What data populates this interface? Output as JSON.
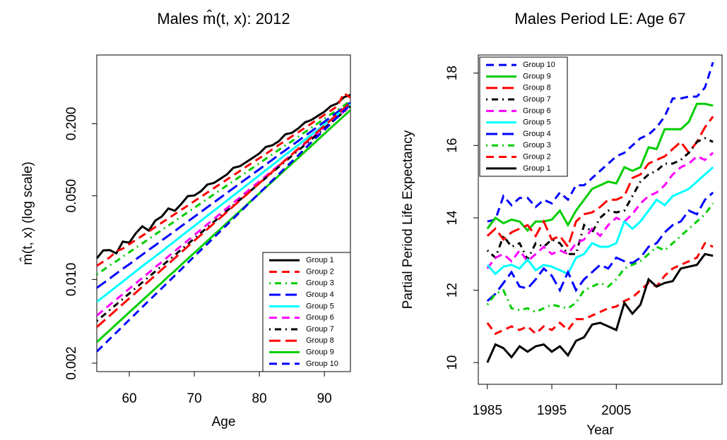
{
  "chart_data": [
    {
      "type": "line",
      "title": "Males m̂(t, x): 2012",
      "xlabel": "Age",
      "ylabel": "m̂(t, x) (log scale)",
      "ylog": true,
      "legend": "bottomright",
      "xlim": [
        55,
        94
      ],
      "xticks": [
        60,
        70,
        80,
        90
      ],
      "ylim": [
        0.0017,
        0.75
      ],
      "yticks": [
        0.002,
        {
          "value": 0.01,
          "label": "0.010"
        },
        {
          "value": 0.05,
          "label": "0.050"
        },
        {
          "value": 0.2,
          "label": "0.200"
        }
      ],
      "x": [
        55,
        56,
        57,
        58,
        59,
        60,
        61,
        62,
        63,
        64,
        65,
        66,
        67,
        68,
        69,
        70,
        71,
        72,
        73,
        74,
        75,
        76,
        77,
        78,
        79,
        80,
        81,
        82,
        83,
        84,
        85,
        86,
        87,
        88,
        89,
        90,
        91,
        92,
        93,
        94
      ],
      "series": [
        {
          "name": "Group 1",
          "color": "#000000",
          "linestyle": "solid",
          "values": [
            0.015,
            0.0175,
            0.0176,
            0.0165,
            0.0207,
            0.0203,
            0.0243,
            0.0278,
            0.0256,
            0.031,
            0.0336,
            0.0392,
            0.0375,
            0.0428,
            0.0497,
            0.0503,
            0.0545,
            0.0621,
            0.064,
            0.0694,
            0.0753,
            0.0856,
            0.0884,
            0.0959,
            0.104,
            0.113,
            0.128,
            0.132,
            0.143,
            0.163,
            0.168,
            0.183,
            0.205,
            0.215,
            0.233,
            0.252,
            0.281,
            0.296,
            0.333,
            0.348
          ]
        },
        {
          "name": "Group 2",
          "color": "#ff0000",
          "linestyle": "dashed",
          "values": [
            0.013,
            0.0141,
            0.0153,
            0.0172,
            0.0181,
            0.0197,
            0.0214,
            0.0232,
            0.0252,
            0.0274,
            0.0298,
            0.0324,
            0.0352,
            0.0382,
            0.0415,
            0.0451,
            0.049,
            0.0533,
            0.0579,
            0.0629,
            0.0683,
            0.0742,
            0.0806,
            0.0876,
            0.0952,
            0.103,
            0.112,
            0.122,
            0.133,
            0.144,
            0.157,
            0.17,
            0.185,
            0.201,
            0.218,
            0.237,
            0.258,
            0.28,
            0.36,
            0.33
          ]
        },
        {
          "name": "Group 3",
          "color": "#00cd00",
          "linestyle": "dotdash",
          "values": [
            0.011,
            0.012,
            0.0131,
            0.0142,
            0.0155,
            0.0169,
            0.0184,
            0.02,
            0.0218,
            0.0238,
            0.0259,
            0.0282,
            0.0307,
            0.0335,
            0.0365,
            0.0397,
            0.0433,
            0.0471,
            0.0514,
            0.0559,
            0.0609,
            0.0664,
            0.0723,
            0.0788,
            0.0858,
            0.0935,
            0.102,
            0.111,
            0.121,
            0.132,
            0.143,
            0.156,
            0.17,
            0.185,
            0.202,
            0.22,
            0.24,
            0.261,
            0.284,
            0.31
          ]
        },
        {
          "name": "Group 4",
          "color": "#0000ff",
          "linestyle": "longdash",
          "values": [
            0.0085,
            0.0093,
            0.0102,
            0.0112,
            0.0123,
            0.0134,
            0.0147,
            0.0161,
            0.0177,
            0.0193,
            0.0212,
            0.0232,
            0.0254,
            0.0279,
            0.0305,
            0.0334,
            0.0366,
            0.0402,
            0.044,
            0.0482,
            0.0528,
            0.0579,
            0.0634,
            0.0695,
            0.0761,
            0.0834,
            0.0914,
            0.1,
            0.11,
            0.12,
            0.132,
            0.144,
            0.158,
            0.173,
            0.19,
            0.208,
            0.228,
            0.25,
            0.274,
            0.3
          ]
        },
        {
          "name": "Group 5",
          "color": "#00ffff",
          "linestyle": "solid",
          "values": [
            0.0065,
            0.00717,
            0.0079,
            0.00871,
            0.0096,
            0.0106,
            0.0117,
            0.0129,
            0.0142,
            0.0156,
            0.0172,
            0.019,
            0.0209,
            0.0231,
            0.0254,
            0.028,
            0.0309,
            0.0341,
            0.0375,
            0.0414,
            0.0456,
            0.0503,
            0.0554,
            0.0611,
            0.0674,
            0.0743,
            0.0819,
            0.0902,
            0.0995,
            0.11,
            0.121,
            0.133,
            0.147,
            0.162,
            0.178,
            0.197,
            0.217,
            0.239,
            0.263,
            0.29
          ]
        },
        {
          "name": "Group 6",
          "color": "#ff00ff",
          "linestyle": "dashed",
          "values": [
            0.005,
            0.00554,
            0.00615,
            0.00681,
            0.00755,
            0.00838,
            0.00929,
            0.0103,
            0.0114,
            0.0127,
            0.014,
            0.0156,
            0.0173,
            0.0191,
            0.0212,
            0.0235,
            0.0261,
            0.0289,
            0.032,
            0.0355,
            0.0394,
            0.0437,
            0.0484,
            0.0537,
            0.0595,
            0.066,
            0.0732,
            0.0811,
            0.0899,
            0.0997,
            0.111,
            0.123,
            0.136,
            0.151,
            0.167,
            0.185,
            0.206,
            0.228,
            0.253,
            0.28
          ]
        },
        {
          "name": "Group 7",
          "color": "#000000",
          "linestyle": "dotdash",
          "values": [
            0.0045,
            0.005,
            0.00556,
            0.00618,
            0.00687,
            0.00764,
            0.00849,
            0.00944,
            0.0105,
            0.0117,
            0.013,
            0.0144,
            0.016,
            0.0178,
            0.0198,
            0.022,
            0.0245,
            0.0272,
            0.0303,
            0.0336,
            0.0374,
            0.0416,
            0.0462,
            0.0514,
            0.0571,
            0.0635,
            0.0706,
            0.0785,
            0.0873,
            0.097,
            0.108,
            0.12,
            0.133,
            0.148,
            0.165,
            0.183,
            0.204,
            0.226,
            0.252,
            0.28
          ]
        },
        {
          "name": "Group 8",
          "color": "#ff0000",
          "linestyle": "longdash",
          "values": [
            0.004,
            0.00447,
            0.00499,
            0.00558,
            0.00623,
            0.00696,
            0.00777,
            0.00868,
            0.0097,
            0.0108,
            0.0121,
            0.0135,
            0.0151,
            0.0169,
            0.0189,
            0.0211,
            0.0235,
            0.0263,
            0.0294,
            0.0328,
            0.0366,
            0.0409,
            0.0457,
            0.051,
            0.057,
            0.0637,
            0.0711,
            0.0795,
            0.0888,
            0.0992,
            0.111,
            0.124,
            0.138,
            0.154,
            0.172,
            0.193,
            0.215,
            0.24,
            0.269,
            0.3
          ]
        },
        {
          "name": "Group 9",
          "color": "#00cd00",
          "linestyle": "solid",
          "values": [
            0.003,
            0.00336,
            0.00377,
            0.00423,
            0.00474,
            0.00532,
            0.00596,
            0.00669,
            0.0075,
            0.0084,
            0.00942,
            0.0106,
            0.0118,
            0.0133,
            0.0149,
            0.0167,
            0.0187,
            0.021,
            0.0235,
            0.0264,
            0.0296,
            0.0332,
            0.0372,
            0.0417,
            0.0468,
            0.0524,
            0.0588,
            0.0659,
            0.0739,
            0.0829,
            0.0929,
            0.104,
            0.117,
            0.131,
            0.147,
            0.165,
            0.185,
            0.207,
            0.232,
            0.26
          ]
        },
        {
          "name": "Group 10",
          "color": "#0000ff",
          "linestyle": "dashed",
          "values": [
            0.0025,
            0.00282,
            0.00319,
            0.0036,
            0.00407,
            0.0046,
            0.0052,
            0.00587,
            0.00663,
            0.00749,
            0.00846,
            0.00956,
            0.0108,
            0.0122,
            0.0138,
            0.0156,
            0.0176,
            0.0198,
            0.0224,
            0.0253,
            0.0286,
            0.0323,
            0.0365,
            0.0412,
            0.0466,
            0.0526,
            0.0594,
            0.0671,
            0.0758,
            0.0857,
            0.0968,
            0.109,
            0.124,
            0.14,
            0.158,
            0.178,
            0.201,
            0.227,
            0.257,
            0.29
          ]
        }
      ]
    },
    {
      "type": "line",
      "title": "Males Period LE: Age 67",
      "xlabel": "Year",
      "ylabel": "Partial Period Life Expectancy",
      "legend": "topleft",
      "categories": [
        "1985",
        null,
        null,
        null,
        null,
        null,
        null,
        null,
        "1995",
        null,
        null,
        null,
        null,
        null,
        null,
        null,
        "2005",
        null,
        null,
        null,
        null,
        null,
        null,
        null,
        null,
        null,
        null,
        null,
        null
      ],
      "ylim": [
        9.4,
        18.5
      ],
      "yticks": [
        10,
        12,
        14,
        16,
        18
      ],
      "series": [
        {
          "name": "Group 10",
          "color": "#0000ff",
          "linestyle": "dashed",
          "values": [
            13.9,
            13.95,
            14.6,
            14.35,
            14.55,
            14.55,
            14.3,
            14.5,
            14.4,
            14.7,
            14.5,
            14.9,
            14.9,
            15.1,
            15.3,
            15.5,
            15.7,
            15.8,
            16.0,
            16.2,
            16.3,
            16.5,
            16.8,
            17.3,
            17.3,
            17.35,
            17.35,
            17.6,
            18.3
          ]
        },
        {
          "name": "Group 9",
          "color": "#00cd00",
          "linestyle": "solid",
          "values": [
            13.7,
            14.0,
            13.85,
            13.95,
            13.9,
            13.65,
            13.9,
            13.9,
            13.95,
            14.2,
            13.8,
            14.2,
            14.5,
            14.8,
            14.9,
            15.0,
            14.95,
            15.4,
            15.3,
            15.4,
            15.95,
            15.9,
            16.45,
            16.45,
            16.45,
            16.65,
            17.15,
            17.15,
            17.1
          ]
        },
        {
          "name": "Group 8",
          "color": "#ff0000",
          "linestyle": "longdash",
          "values": [
            13.5,
            13.7,
            13.4,
            13.6,
            13.7,
            13.8,
            13.5,
            13.9,
            13.4,
            13.5,
            13.2,
            13.9,
            14.1,
            14.15,
            14.3,
            14.5,
            14.5,
            14.6,
            15.1,
            15.2,
            15.5,
            15.6,
            15.7,
            15.9,
            16.1,
            15.8,
            16.1,
            16.5,
            16.8
          ]
        },
        {
          "name": "Group 7",
          "color": "#000000",
          "linestyle": "dotdash",
          "values": [
            13.1,
            12.9,
            13.5,
            13.2,
            13.3,
            12.85,
            13.3,
            13.2,
            13.4,
            13.3,
            13.0,
            13.0,
            13.8,
            13.6,
            14.0,
            14.2,
            14.15,
            14.2,
            14.6,
            15.0,
            15.2,
            15.3,
            15.5,
            15.5,
            15.6,
            15.8,
            16.1,
            16.2,
            16.1
          ]
        },
        {
          "name": "Group 6",
          "color": "#ff00ff",
          "linestyle": "dashed",
          "values": [
            12.6,
            12.9,
            13.0,
            12.8,
            13.1,
            12.8,
            13.0,
            13.2,
            13.0,
            13.1,
            13.0,
            13.3,
            13.4,
            13.7,
            13.5,
            13.8,
            14.0,
            13.9,
            14.1,
            14.4,
            14.6,
            14.7,
            14.9,
            15.2,
            15.4,
            15.5,
            15.7,
            15.6,
            15.8
          ]
        },
        {
          "name": "Group 5",
          "color": "#00ffff",
          "linestyle": "solid",
          "values": [
            12.7,
            12.45,
            12.65,
            12.7,
            12.6,
            12.85,
            12.55,
            12.7,
            12.65,
            12.55,
            12.45,
            12.9,
            13.0,
            13.3,
            13.2,
            13.2,
            13.3,
            13.9,
            13.7,
            13.9,
            14.2,
            14.5,
            14.35,
            14.6,
            14.7,
            14.8,
            15.0,
            15.2,
            15.4
          ]
        },
        {
          "name": "Group 4",
          "color": "#0000ff",
          "linestyle": "longdash",
          "values": [
            11.7,
            11.9,
            12.2,
            12.5,
            12.1,
            12.05,
            12.3,
            12.6,
            12.4,
            12.0,
            12.5,
            12.0,
            12.3,
            12.5,
            12.7,
            12.6,
            12.9,
            12.8,
            12.75,
            12.9,
            13.2,
            13.3,
            13.6,
            13.8,
            13.9,
            14.2,
            14.1,
            14.5,
            14.7
          ]
        },
        {
          "name": "Group 3",
          "color": "#00cd00",
          "linestyle": "dotdash",
          "values": [
            11.6,
            11.9,
            12.0,
            11.5,
            11.45,
            11.5,
            11.4,
            11.5,
            11.6,
            11.55,
            11.5,
            11.65,
            12.0,
            12.1,
            12.2,
            12.1,
            12.3,
            12.6,
            12.7,
            12.8,
            13.0,
            13.2,
            13.1,
            13.3,
            13.5,
            13.7,
            13.9,
            14.1,
            14.4
          ]
        },
        {
          "name": "Group 2",
          "color": "#ff0000",
          "linestyle": "dashed",
          "values": [
            11.1,
            10.8,
            10.9,
            11.0,
            10.9,
            11.0,
            10.8,
            11.0,
            10.9,
            11.1,
            10.9,
            11.2,
            11.2,
            11.3,
            11.4,
            11.5,
            11.55,
            11.7,
            11.8,
            12.0,
            12.2,
            12.1,
            12.4,
            12.6,
            12.7,
            12.8,
            12.9,
            13.3,
            13.2
          ]
        },
        {
          "name": "Group 1",
          "color": "#000000",
          "linestyle": "solid",
          "values": [
            10.0,
            10.5,
            10.4,
            10.15,
            10.45,
            10.3,
            10.45,
            10.5,
            10.3,
            10.45,
            10.2,
            10.6,
            10.7,
            11.05,
            11.1,
            11.0,
            10.9,
            11.65,
            11.35,
            11.6,
            12.3,
            12.1,
            12.2,
            12.25,
            12.6,
            12.65,
            12.7,
            13.0,
            12.95
          ]
        }
      ]
    }
  ]
}
